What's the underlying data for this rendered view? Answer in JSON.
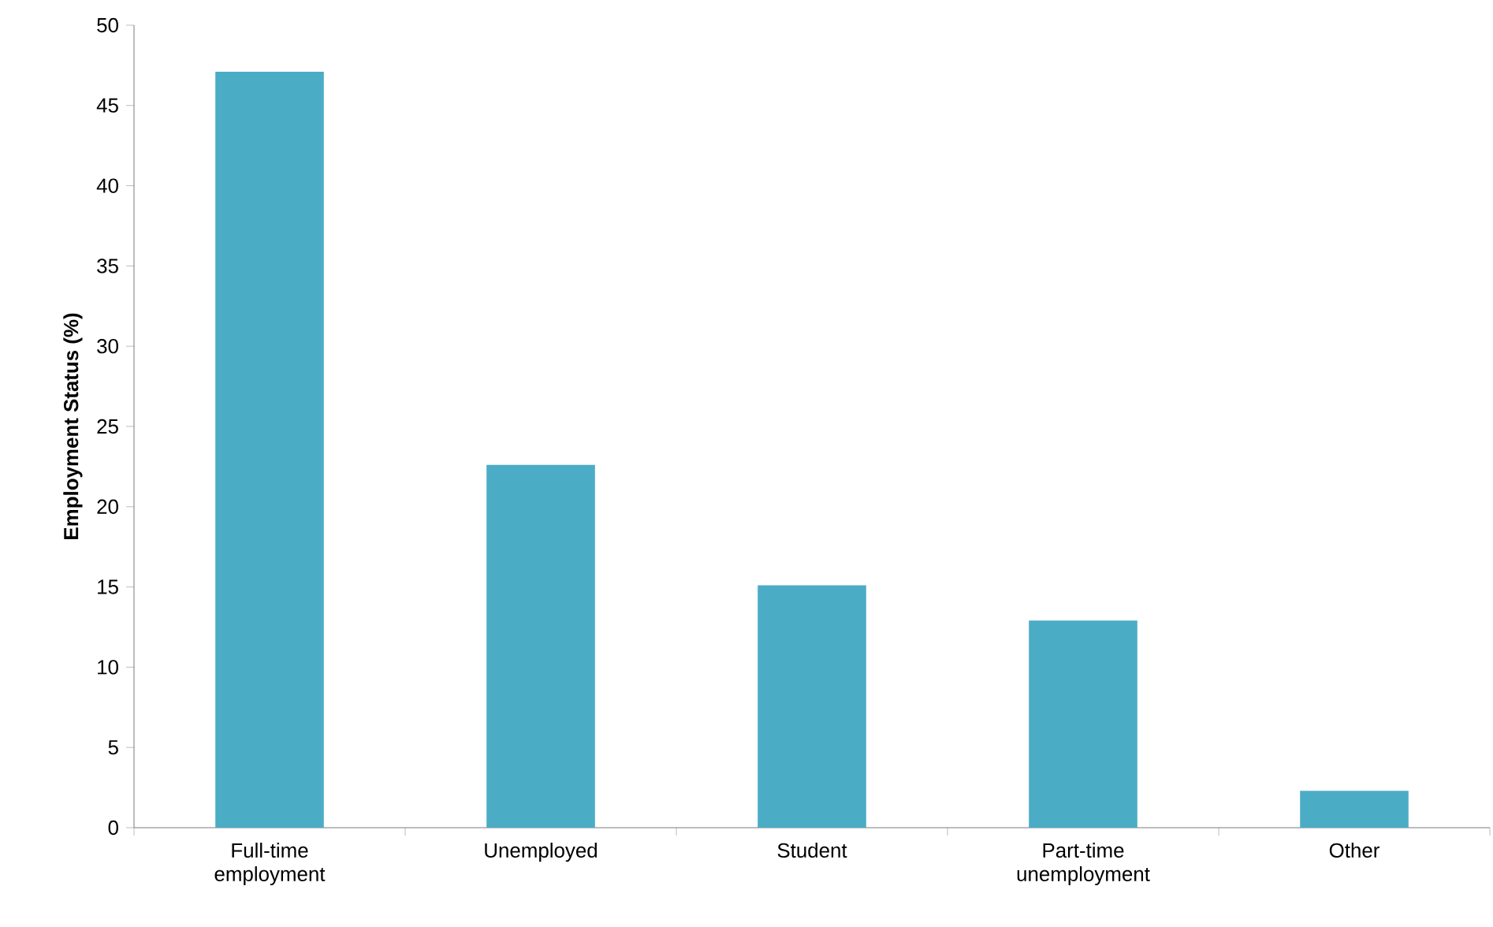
{
  "chart_data": {
    "type": "bar",
    "ylabel": "Employment Status (%)",
    "categories": [
      "Full-time employment",
      "Unemployed",
      "Student",
      "Part-time unemployment",
      "Other"
    ],
    "values": [
      47.1,
      22.6,
      15.1,
      12.9,
      2.3
    ],
    "color": "#4bacc6",
    "ylim": [
      0,
      50
    ],
    "yticks": [
      0,
      5,
      10,
      15,
      20,
      25,
      30,
      35,
      40,
      45,
      50
    ]
  }
}
